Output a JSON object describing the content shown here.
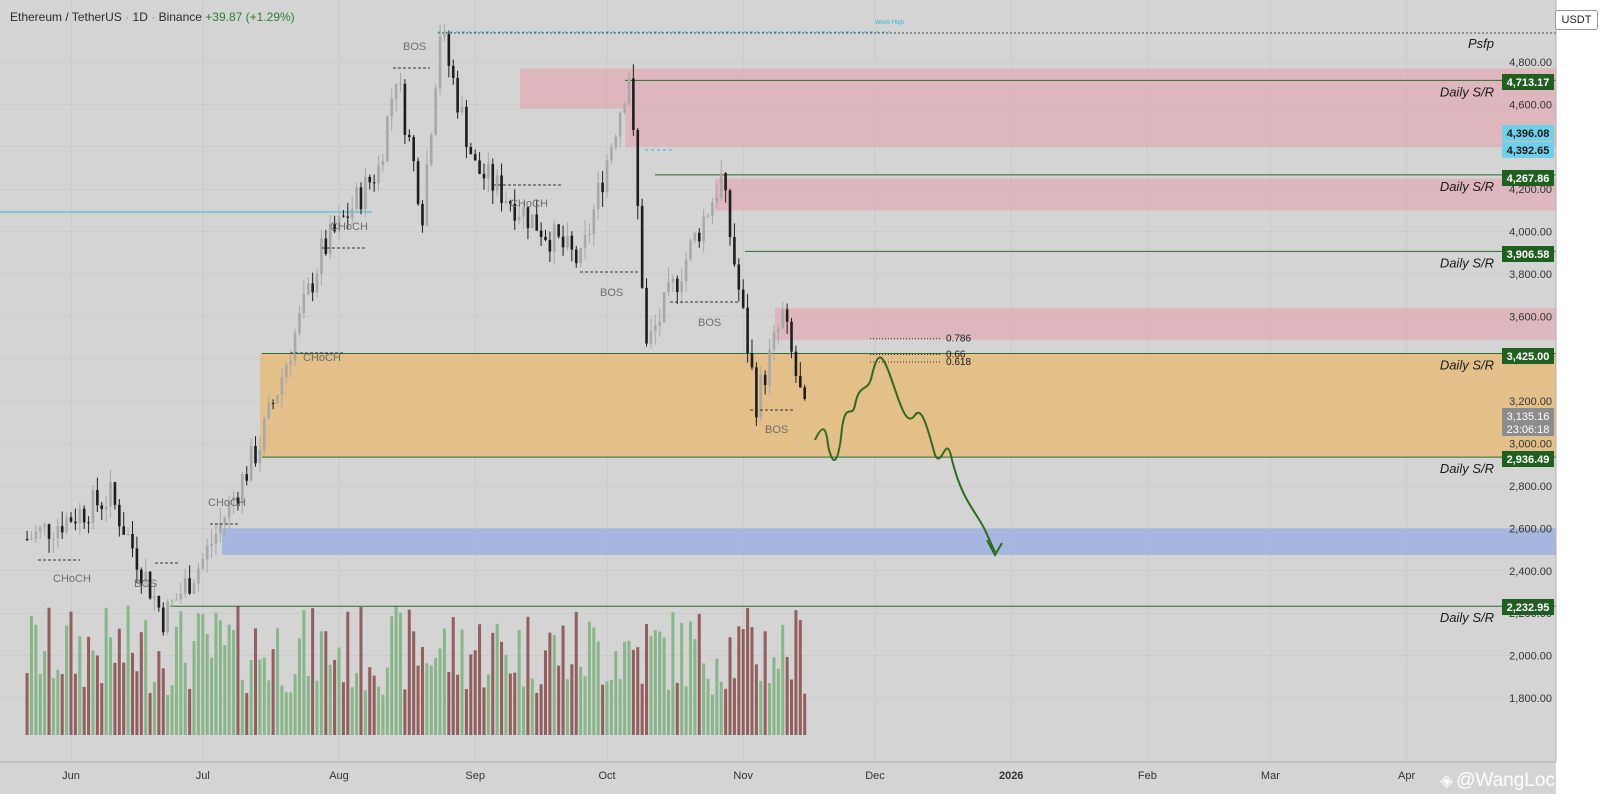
{
  "header": {
    "symbol": "Ethereum / TetherUS",
    "interval": "1D",
    "exchange": "Binance",
    "change": "+39.87 (+1.29%)"
  },
  "currency_button": "USDT",
  "watermark": "@WangLoc",
  "colors": {
    "background": "#d4d4d4",
    "axis_bg": "#ffffff",
    "up": "#a8a8a8",
    "down": "#1e1e1e",
    "vol_up": "#7fb27f",
    "vol_down": "#8b5151",
    "sr_line": "#2e6b2e",
    "sr_label_bg": "#1f5f1f",
    "supply_zone": "#e3a4ae",
    "demand_zone": "#e8b870",
    "blue_zone": "#9db0e0",
    "projection": "#2f6a1f",
    "cyan": "#33b8d8"
  },
  "chart_data": {
    "type": "candlestick",
    "title": "Ethereum / TetherUS · 1D · Binance",
    "x_axis": {
      "labels": [
        "Jun",
        "Jul",
        "Aug",
        "Sep",
        "Oct",
        "Nov",
        "Dec",
        "2026",
        "Feb",
        "Mar",
        "Apr"
      ]
    },
    "y_axis": {
      "range": [
        1650,
        5000
      ],
      "ticks": [
        1800,
        2000,
        2200,
        2400,
        2600,
        2800,
        3000,
        3200,
        3400,
        3600,
        3800,
        4000,
        4200,
        4400,
        4600,
        4800
      ],
      "tick_labels": [
        "1,800.00",
        "2,000.00",
        "2,200.00",
        "2,400.00",
        "2,600.00",
        "2,800.00",
        "3,000.00",
        "3,200.00",
        "3,400.00",
        "3,600.00",
        "3,800.00",
        "4,000.00",
        "4,200.00",
        "4,400.00",
        "4,600.00",
        "4,800.00"
      ]
    },
    "price_path_approx": [
      {
        "d": "2025-05-22",
        "p": 2550
      },
      {
        "d": "2025-06-10",
        "p": 2750
      },
      {
        "d": "2025-06-22",
        "p": 2180
      },
      {
        "d": "2025-07-01",
        "p": 2450
      },
      {
        "d": "2025-07-14",
        "p": 3000
      },
      {
        "d": "2025-07-28",
        "p": 3900
      },
      {
        "d": "2025-08-10",
        "p": 4300
      },
      {
        "d": "2025-08-14",
        "p": 4750
      },
      {
        "d": "2025-08-20",
        "p": 4100
      },
      {
        "d": "2025-08-24",
        "p": 4950
      },
      {
        "d": "2025-09-01",
        "p": 4300
      },
      {
        "d": "2025-09-25",
        "p": 3850
      },
      {
        "d": "2025-10-06",
        "p": 4750
      },
      {
        "d": "2025-10-10",
        "p": 3450
      },
      {
        "d": "2025-10-27",
        "p": 4250
      },
      {
        "d": "2025-11-04",
        "p": 3200
      },
      {
        "d": "2025-11-10",
        "p": 3600
      },
      {
        "d": "2025-11-15",
        "p": 3135
      }
    ],
    "last_price": "3,135.16",
    "countdown": "23:06:18",
    "volume_visible": true,
    "price_labels": [
      {
        "value": 4713.17,
        "text": "4,713.17",
        "style": "sr"
      },
      {
        "value": 4396.08,
        "text": "4,396.08",
        "style": "cyan"
      },
      {
        "value": 4392.65,
        "text": "4,392.65",
        "style": "cyan"
      },
      {
        "value": 4267.86,
        "text": "4,267.86",
        "style": "sr"
      },
      {
        "value": 3906.58,
        "text": "3,906.58",
        "style": "sr"
      },
      {
        "value": 3425.0,
        "text": "3,425.00",
        "style": "sr"
      },
      {
        "value": 2936.49,
        "text": "2,936.49",
        "style": "sr"
      },
      {
        "value": 2232.95,
        "text": "2,232.95",
        "style": "sr"
      }
    ],
    "sr_levels": [
      {
        "value": 4713.17,
        "label": "Daily S/R"
      },
      {
        "value": 4267.86,
        "label": "Daily S/R"
      },
      {
        "value": 3906.58,
        "label": "Daily S/R"
      },
      {
        "value": 3425.0,
        "label": "Daily S/R"
      },
      {
        "value": 2936.49,
        "label": "Daily S/R"
      },
      {
        "value": 2232.95,
        "label": "Daily S/R"
      }
    ],
    "top_label": "Psfp",
    "week_high_label": "Week High",
    "fib_levels": [
      {
        "ratio": "0.786",
        "value": 3495
      },
      {
        "ratio": "0.66",
        "value": 3420
      },
      {
        "ratio": "0.618",
        "value": 3385
      }
    ],
    "zones": [
      {
        "type": "supply",
        "from": 4580,
        "to": 4770
      },
      {
        "type": "supply",
        "from": 4400,
        "to": 4580
      },
      {
        "type": "supply",
        "from": 4100,
        "to": 4250
      },
      {
        "type": "supply",
        "from": 3490,
        "to": 3640
      },
      {
        "type": "demand",
        "from": 2936.49,
        "to": 3425.0
      },
      {
        "type": "target",
        "from": 2475,
        "to": 2600
      }
    ],
    "structure_labels": [
      "BOS",
      "CHoCH",
      "CHoCH",
      "BOS",
      "CHoCH",
      "BOS",
      "BOS",
      "BOS",
      "CHoCH",
      "BOS",
      "CHoCH"
    ]
  }
}
